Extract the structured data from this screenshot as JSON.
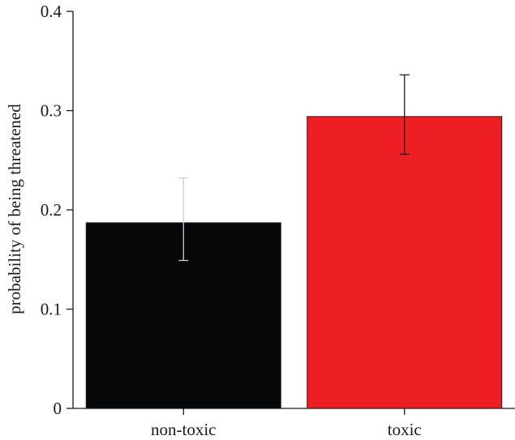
{
  "chart_data": {
    "type": "bar",
    "categories": [
      "non-toxic",
      "toxic"
    ],
    "values": [
      0.187,
      0.294
    ],
    "error_low": [
      0.149,
      0.256
    ],
    "error_high": [
      0.232,
      0.336
    ],
    "colors": [
      "#050708",
      "#ed1f24"
    ],
    "error_colors": [
      "#cfcfcf",
      "#1a1a1a"
    ],
    "title": "",
    "xlabel": "",
    "ylabel": "probability of being threatened",
    "ylim": [
      0,
      0.4
    ],
    "yticks": [
      0,
      0.1,
      0.2,
      0.3,
      0.4
    ],
    "ytick_labels": [
      "0",
      "0.1",
      "0.2",
      "0.3",
      "0.4"
    ],
    "grid": false,
    "legend": "none"
  }
}
